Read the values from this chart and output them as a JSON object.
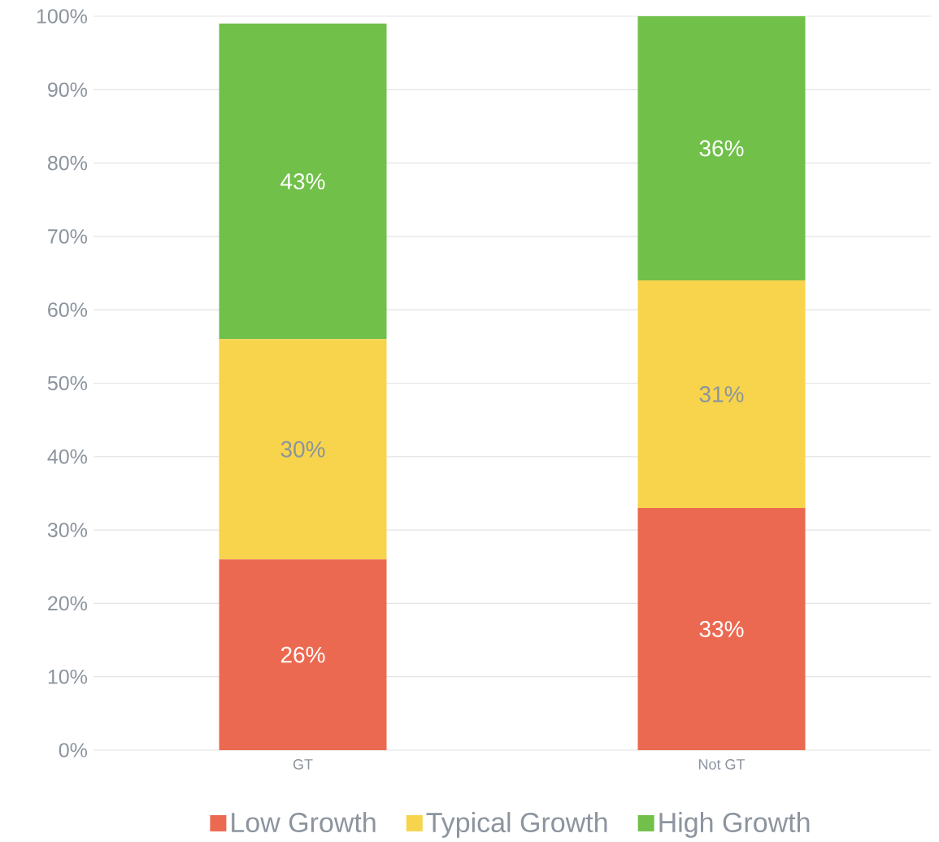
{
  "chart_data": {
    "type": "bar",
    "stacked": true,
    "categories": [
      "GT",
      "Not GT"
    ],
    "series": [
      {
        "name": "Low Growth",
        "color": "#ec6951",
        "values": [
          26,
          33
        ],
        "value_labels": [
          "26%",
          "33%"
        ]
      },
      {
        "name": "Typical Growth",
        "color": "#f7d44c",
        "values": [
          30,
          31
        ],
        "value_labels": [
          "30%",
          "31%"
        ]
      },
      {
        "name": "High Growth",
        "color": "#70c04a",
        "values": [
          43,
          36
        ],
        "value_labels": [
          "43%",
          "36%"
        ]
      }
    ],
    "ylim": [
      0,
      100
    ],
    "yticks": [
      {
        "value": 0,
        "label": "0%"
      },
      {
        "value": 10,
        "label": "10%"
      },
      {
        "value": 20,
        "label": "20%"
      },
      {
        "value": 30,
        "label": "30%"
      },
      {
        "value": 40,
        "label": "40%"
      },
      {
        "value": 50,
        "label": "50%"
      },
      {
        "value": 60,
        "label": "60%"
      },
      {
        "value": 70,
        "label": "70%"
      },
      {
        "value": 80,
        "label": "80%"
      },
      {
        "value": 90,
        "label": "90%"
      },
      {
        "value": 100,
        "label": "100%"
      }
    ],
    "grid": "y",
    "legend": "bottom"
  }
}
